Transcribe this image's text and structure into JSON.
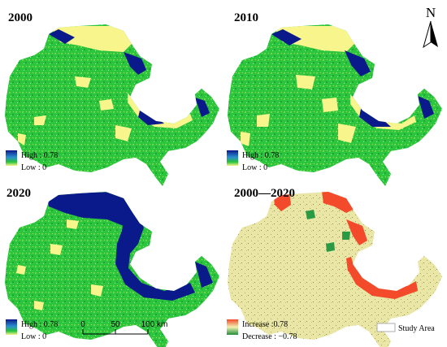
{
  "panels": [
    {
      "title": "2000",
      "legend_high": "High : 0.78",
      "legend_low": "Low : 0"
    },
    {
      "title": "2010",
      "legend_high": "High : 0.78",
      "legend_low": "Low : 0"
    },
    {
      "title": "2020",
      "legend_high": "High : 0.78",
      "legend_low": "Low : 0"
    },
    {
      "title": "2000—2020",
      "legend_high": "Increase :0.78",
      "legend_low": "Decrease : −0.78"
    }
  ],
  "north_label": "N",
  "scale_bar": {
    "ticks": [
      "0",
      "50",
      "100 km"
    ]
  },
  "study_area_label": "Study Area",
  "colors": {
    "high": "#00137a",
    "mid": "#27c13a",
    "low": "#f7f58c",
    "increase": "#f24a2a",
    "decrease": "#1f8f3c",
    "neutral": "#e9e6a6"
  }
}
